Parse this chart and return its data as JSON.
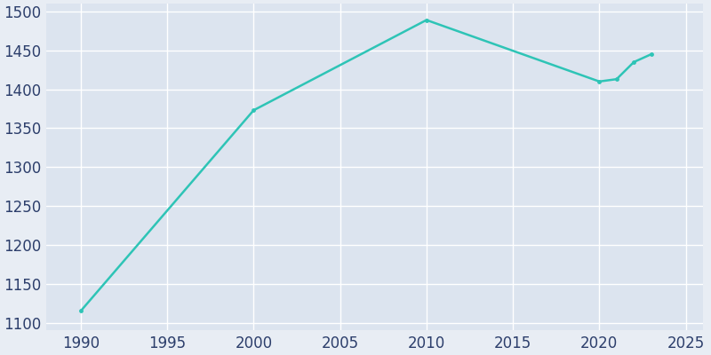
{
  "years": [
    1990,
    2000,
    2010,
    2020,
    2021,
    2022,
    2023
  ],
  "population": [
    1115,
    1373,
    1489,
    1410,
    1413,
    1435,
    1445
  ],
  "line_color": "#2EC4B6",
  "marker": "o",
  "marker_size": 3.5,
  "line_width": 1.8,
  "background_color": "#E8EDF4",
  "plot_background_color": "#DCE4EF",
  "grid_color": "#FFFFFF",
  "tick_color": "#2C3E6B",
  "xlim": [
    1988,
    2026
  ],
  "ylim": [
    1090,
    1510
  ],
  "xticks": [
    1990,
    1995,
    2000,
    2005,
    2010,
    2015,
    2020,
    2025
  ],
  "yticks": [
    1100,
    1150,
    1200,
    1250,
    1300,
    1350,
    1400,
    1450,
    1500
  ],
  "tick_fontsize": 12,
  "figsize": [
    8.0,
    4.0
  ],
  "dpi": 100
}
